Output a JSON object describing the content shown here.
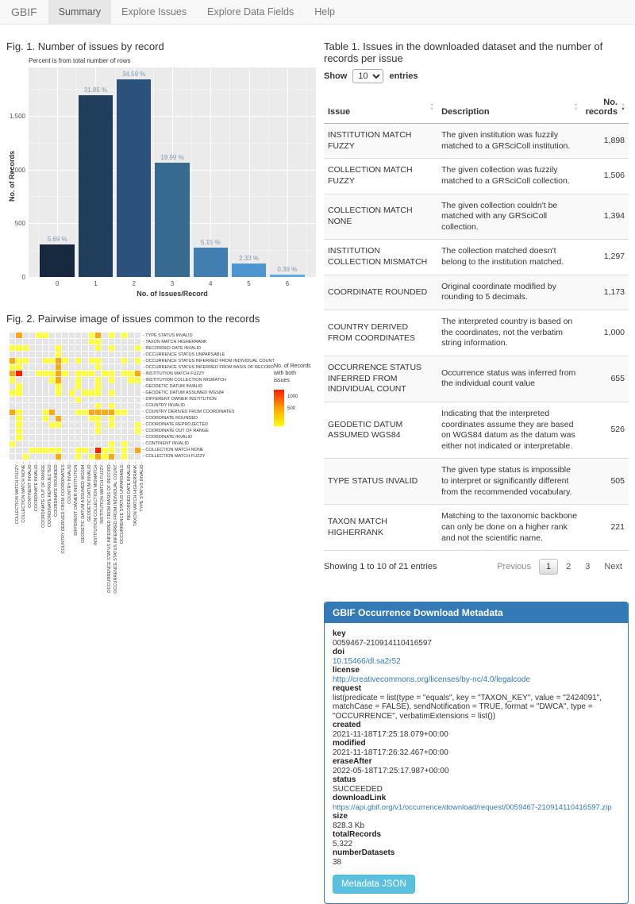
{
  "navbar": {
    "brand": "GBIF",
    "tabs": [
      {
        "label": "Summary",
        "active": true
      },
      {
        "label": "Explore Issues",
        "active": false
      },
      {
        "label": "Explore Data Fields",
        "active": false
      },
      {
        "label": "Help",
        "active": false
      }
    ]
  },
  "figures": {
    "fig1_title": "Fig. 1. Number of issues by record",
    "fig2_title": "Fig. 2. Pairwise image of issues common to the records"
  },
  "colors": {
    "accent": "#337AB7",
    "info_button": "#5BC0DE",
    "navbar_bg": "#F8F8F8",
    "link": "#337AB7",
    "panel_bg": "#EBEBEB",
    "bar_label": "#7E96B2"
  },
  "chart_data": [
    {
      "type": "bar",
      "title": "Fig. 1. Number of issues by record",
      "subtitle": "Percent is from total number of rows",
      "categories": [
        "0",
        "1",
        "2",
        "3",
        "4",
        "5",
        "6"
      ],
      "values": [
        303,
        1695,
        1841,
        1064,
        274,
        124,
        21
      ],
      "bar_labels": [
        "5.69 %",
        "31.85 %",
        "34.59 %",
        "19.99 %",
        "5.15 %",
        "2.33 %",
        "0.39 %"
      ],
      "bar_colors": [
        "#17293E",
        "#1F3E5C",
        "#2A527A",
        "#366A91",
        "#417FB0",
        "#4C95CF",
        "#58ACEC"
      ],
      "xlabel": "No. of Issues/Record",
      "ylabel": "No. of Records",
      "yticks": [
        0,
        500,
        1000,
        1500
      ],
      "ytick_labels": [
        "0",
        "500",
        "1,000",
        "1,500"
      ],
      "ylim": [
        0,
        1950
      ],
      "grid": true,
      "legend_position": "none"
    },
    {
      "type": "heatmap",
      "title": "Fig. 2. Pairwise image of issues common to the records",
      "x_labels": [
        "COLLECTION MATCH FUZZY",
        "COLLECTION MATCH NONE",
        "CONTINENT INVALID",
        "COORDINATE INVALID",
        "COORDINATE OUT OF RANGE",
        "COORDINATE REPROJECTED",
        "COORDINATE ROUNDED",
        "COUNTRY DERIVED FROM COORDINATES",
        "COUNTRY INVALID",
        "DIFFERENT OWNER INSTITUTION",
        "GEODETIC DATUM ASSUMED WGS84",
        "GEODETIC DATUM INVALID",
        "INSTITUTION COLLECTION MISMATCH",
        "INSTITUTION MATCH FUZZY",
        "OCCURRENCE STATUS INFERRED FROM BASIS OF RECORD",
        "OCCURRENCE STATUS INFERRED FROM INDIVIDUAL COUNT",
        "OCCURRENCE STATUS UNPARSABLE",
        "RECORDED DATE INVALID",
        "TAXON MATCH HIGHERRANK",
        "TYPE STATUS INVALID"
      ],
      "y_labels": [
        "TYPE STATUS INVALID",
        "TAXON MATCH HIGHERRANK",
        "RECORDED DATE INVALID",
        "OCCURRENCE STATUS UNPARSABLE",
        "OCCURRENCE STATUS INFERRED FROM INDIVIDUAL COUNT",
        "OCCURRENCE STATUS INFERRED FROM BASIS OF RECORD",
        "INSTITUTION MATCH FUZZY",
        "INSTITUTION COLLECTION MISMATCH",
        "GEODETIC DATUM INVALID",
        "GEODETIC DATUM ASSUMED WGS84",
        "DIFFERENT OWNER INSTITUTION",
        "COUNTRY INVALID",
        "COUNTRY DERIVED FROM COORDINATES",
        "COORDINATE ROUNDED",
        "COORDINATE REPROJECTED",
        "COORDINATE OUT OF RANGE",
        "COORDINATE INVALID",
        "CONTINENT INVALID",
        "COLLECTION MATCH NONE",
        "COLLECTION MATCH FUZZY"
      ],
      "matrix_rows": [
        ".O..YY......YO.Y.Y..",
        "............YY......",
        "YYY....Y.....Y.Y...Y",
        ".......Y............",
        "OYY..YYOY.Y.YY...Y.Y",
        "YY.....O.....Y......",
        "OR..YYYOY.YYY.YY.YYO",
        "Y.....YO..Y..Y.Y..YY",
        ".Y.....Y..Y..Y......",
        "YY.....Y.Y.YYY.Y....",
        "..........Y.........",
        ".............Y.Y....",
        "OY...YO...YYOOOOYY..",
        ".Y...Y.O....YY.Y....",
        ".Y....YY.....Y.Y...Y",
        ".Y...........Y.....Y",
        ".Y..................",
        "Y..............Y.Y..",
        "...YYYYY..YY.RYY.Y.O",
        "..Y....O..Y.YOYO.Y.."
      ],
      "value_map": {
        ".": null,
        "Y": 150,
        "O": 550,
        "R": 1300
      },
      "cell_colors": {
        ".": "#E5E5E5",
        "Y": "#FFFF3B",
        "O": "#FFA713",
        "R": "#FF1E00"
      },
      "legend": {
        "title": "No. of Records\nwith both\nissues",
        "ticks": [
          "1000",
          "500"
        ],
        "gradient_top": "#FF1E00",
        "gradient_mid": "#FFA000",
        "gradient_bottom": "#FFFF00",
        "max": 1350
      }
    }
  ],
  "table1": {
    "title": "Table 1. Issues in the downloaded dataset and the number of records per issue",
    "show_label": "Show",
    "entries_label": "entries",
    "page_size": "10",
    "page_size_options": [
      "10"
    ],
    "columns": [
      "Issue",
      "Description",
      "No. records"
    ],
    "sorted_column": "No. records",
    "sort_direction": "desc",
    "rows": [
      {
        "issue": "INSTITUTION MATCH FUZZY",
        "description": "The given institution was fuzzily matched to a GRSciColl institution.",
        "records": "1,898"
      },
      {
        "issue": "COLLECTION MATCH FUZZY",
        "description": "The given collection was fuzzily matched to a GRSciColl collection.",
        "records": "1,506"
      },
      {
        "issue": "COLLECTION MATCH NONE",
        "description": "The given collection couldn't be matched with any GRSciColl collection.",
        "records": "1,394"
      },
      {
        "issue": "INSTITUTION COLLECTION MISMATCH",
        "description": "The collection matched doesn't belong to the institution matched.",
        "records": "1,297"
      },
      {
        "issue": "COORDINATE ROUNDED",
        "description": "Original coordinate modified by rounding to 5 decimals.",
        "records": "1,173"
      },
      {
        "issue": "COUNTRY DERIVED FROM COORDINATES",
        "description": "The interpreted country is based on the coordinates, not the verbatim string information.",
        "records": "1,000"
      },
      {
        "issue": "OCCURRENCE STATUS INFERRED FROM INDIVIDUAL COUNT",
        "description": "Occurrence status was inferred from the individual count value",
        "records": "655"
      },
      {
        "issue": "GEODETIC DATUM ASSUMED WGS84",
        "description": "Indicating that the interpreted coordinates assume they are based on WGS84 datum as the datum was either not indicated or interpretable.",
        "records": "526"
      },
      {
        "issue": "TYPE STATUS INVALID",
        "description": "The given type status is impossible to interpret or significantly different from the recommended vocabulary.",
        "records": "505"
      },
      {
        "issue": "TAXON MATCH HIGHERRANK",
        "description": "Matching to the taxonomic backbone can only be done on a higher rank and not the scientific name.",
        "records": "221"
      }
    ],
    "info": "Showing 1 to 10 of 21 entries",
    "pagination": {
      "previous": "Previous",
      "pages": [
        "1",
        "2",
        "3"
      ],
      "active": "1",
      "next": "Next"
    }
  },
  "metadata_panel": {
    "header": "GBIF Occurrence Download Metadata",
    "fields": [
      {
        "label": "key",
        "value": "0059467-210914110416597",
        "link": false
      },
      {
        "label": "doi",
        "value": "10.15466/dl.sa2r52",
        "link": true
      },
      {
        "label": "license",
        "value": "http://creativecommons.org/licenses/by-nc/4.0/legalcode",
        "link": true
      },
      {
        "label": "request",
        "value": "list(predicate = list(type = \"equals\", key = \"TAXON_KEY\", value = \"2424091\", matchCase = FALSE), sendNotification = TRUE, format = \"DWCA\", type = \"OCCURRENCE\", verbatimExtensions = list())",
        "link": false
      },
      {
        "label": "created",
        "value": "2021-11-18T17:25:18.079+00:00",
        "link": false
      },
      {
        "label": "modified",
        "value": "2021-11-18T17:26:32.467+00:00",
        "link": false
      },
      {
        "label": "eraseAfter",
        "value": "2022-05-18T17:25:17.987+00:00",
        "link": false
      },
      {
        "label": "status",
        "value": "SUCCEEDED",
        "link": false
      },
      {
        "label": "downloadLink",
        "value": "https://api.gbif.org/v1/occurrence/download/request/0059467-210914110416597.zip",
        "link": true,
        "small": true
      },
      {
        "label": "size",
        "value": "828.3 Kb",
        "link": false
      },
      {
        "label": "totalRecords",
        "value": "5,322",
        "link": false
      },
      {
        "label": "numberDatasets",
        "value": "38",
        "link": false
      }
    ],
    "button_label": "Metadata JSON"
  }
}
